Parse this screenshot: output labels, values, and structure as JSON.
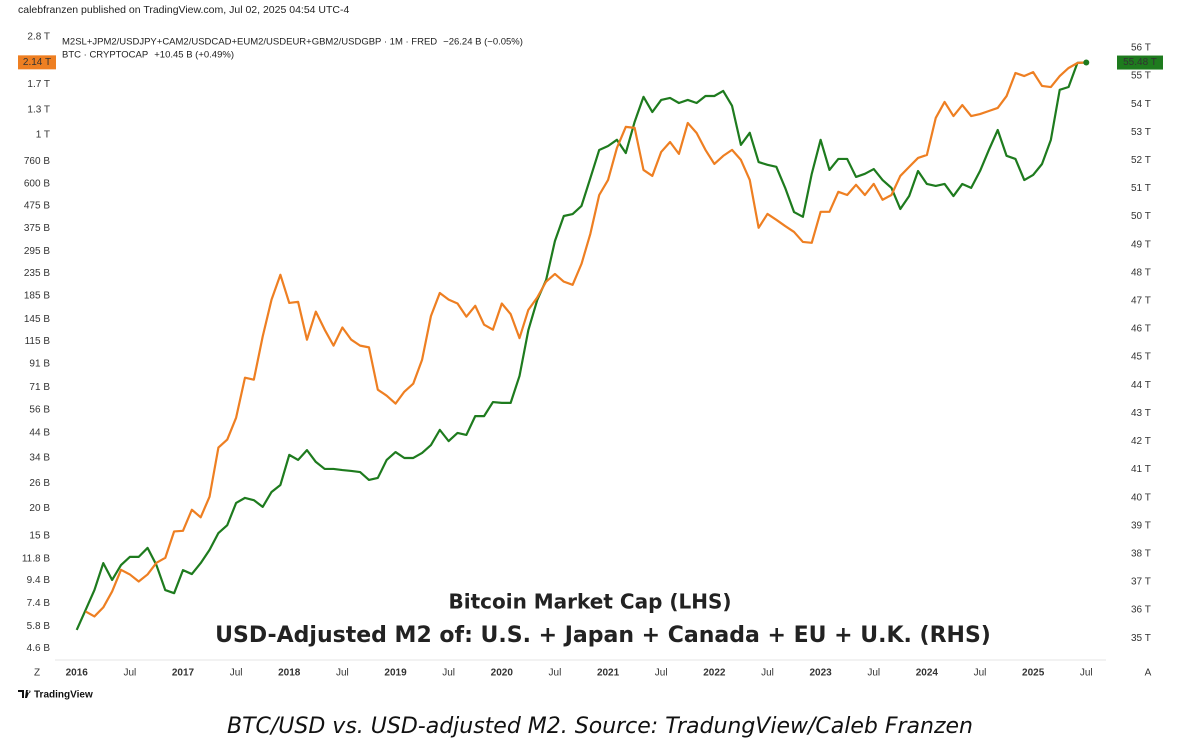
{
  "header": "calebfranzen published on TradingView.com, Jul 02, 2025 04:54 UTC-4",
  "chart_data": {
    "type": "line",
    "x": [
      "2016-01",
      "2016-02",
      "2016-03",
      "2016-04",
      "2016-05",
      "2016-06",
      "2016-07",
      "2016-08",
      "2016-09",
      "2016-10",
      "2016-11",
      "2016-12",
      "2017-01",
      "2017-02",
      "2017-03",
      "2017-04",
      "2017-05",
      "2017-06",
      "2017-07",
      "2017-08",
      "2017-09",
      "2017-10",
      "2017-11",
      "2017-12",
      "2018-01",
      "2018-02",
      "2018-03",
      "2018-04",
      "2018-05",
      "2018-06",
      "2018-07",
      "2018-08",
      "2018-09",
      "2018-10",
      "2018-11",
      "2018-12",
      "2019-01",
      "2019-02",
      "2019-03",
      "2019-04",
      "2019-05",
      "2019-06",
      "2019-07",
      "2019-08",
      "2019-09",
      "2019-10",
      "2019-11",
      "2019-12",
      "2020-01",
      "2020-02",
      "2020-03",
      "2020-04",
      "2020-05",
      "2020-06",
      "2020-07",
      "2020-08",
      "2020-09",
      "2020-10",
      "2020-11",
      "2020-12",
      "2021-01",
      "2021-02",
      "2021-03",
      "2021-04",
      "2021-05",
      "2021-06",
      "2021-07",
      "2021-08",
      "2021-09",
      "2021-10",
      "2021-11",
      "2021-12",
      "2022-01",
      "2022-02",
      "2022-03",
      "2022-04",
      "2022-05",
      "2022-06",
      "2022-07",
      "2022-08",
      "2022-09",
      "2022-10",
      "2022-11",
      "2022-12",
      "2023-01",
      "2023-02",
      "2023-03",
      "2023-04",
      "2023-05",
      "2023-06",
      "2023-07",
      "2023-08",
      "2023-09",
      "2023-10",
      "2023-11",
      "2023-12",
      "2024-01",
      "2024-02",
      "2024-03",
      "2024-04",
      "2024-05",
      "2024-06",
      "2024-07",
      "2024-08",
      "2024-09",
      "2024-10",
      "2024-11",
      "2024-12",
      "2025-01",
      "2025-02",
      "2025-03",
      "2025-04",
      "2025-05",
      "2025-06",
      "2025-07"
    ],
    "series": [
      {
        "name": "M2SL+JPM2/USDJPY+CAM2/USDCAD+EUM2/USDEUR+GBM2/USDGBP · 1M · FRED",
        "change": "−26.24 B (−0.05%)",
        "color": "#1e7b1e",
        "axis": "y2",
        "last_value_label": "55.48 T",
        "values": [
          35.29,
          36.0,
          36.71,
          37.67,
          37.07,
          37.6,
          37.89,
          37.89,
          38.21,
          37.6,
          36.71,
          36.6,
          37.42,
          37.28,
          37.67,
          38.14,
          38.74,
          39.02,
          39.81,
          39.99,
          39.91,
          39.67,
          40.2,
          40.45,
          41.52,
          41.34,
          41.69,
          41.27,
          41.02,
          41.02,
          40.98,
          40.95,
          40.91,
          40.63,
          40.7,
          41.34,
          41.62,
          41.41,
          41.41,
          41.59,
          41.87,
          42.41,
          42.01,
          42.3,
          42.23,
          42.9,
          42.9,
          43.4,
          43.37,
          43.37,
          44.33,
          45.96,
          47.03,
          47.74,
          49.13,
          50.02,
          50.09,
          50.38,
          51.37,
          52.37,
          52.51,
          52.73,
          52.26,
          53.37,
          54.26,
          53.72,
          54.15,
          54.22,
          54.04,
          54.15,
          54.04,
          54.29,
          54.29,
          54.47,
          53.94,
          52.55,
          52.98,
          51.94,
          51.84,
          51.77,
          51.02,
          50.16,
          49.99,
          51.52,
          52.73,
          51.66,
          52.05,
          52.05,
          51.41,
          51.52,
          51.69,
          51.3,
          51.02,
          50.27,
          50.73,
          51.62,
          51.16,
          51.09,
          51.16,
          50.73,
          51.16,
          51.02,
          51.62,
          52.37,
          53.08,
          52.16,
          52.05,
          51.3,
          51.48,
          51.87,
          52.73,
          54.51,
          54.61,
          55.47,
          55.48
        ]
      },
      {
        "name": "BTC · CRYPTOCAP",
        "change": "+10.45 B (+0.49%)",
        "color": "#ee7f22",
        "last_value_label": "2.14 T",
        "values": [
          null,
          6.79,
          6.44,
          7.08,
          8.37,
          10.5,
          10.0,
          9.29,
          10.0,
          11.3,
          11.9,
          15.7,
          15.8,
          19.7,
          18.2,
          22.6,
          37.8,
          41.1,
          51.7,
          78.6,
          77.0,
          121,
          178,
          231,
          172,
          174,
          117,
          157,
          130,
          110,
          133,
          117,
          110,
          108,
          69.3,
          65.1,
          59.9,
          67.9,
          73.8,
          94.9,
          150,
          191,
          178,
          171,
          149,
          167,
          137,
          130,
          171,
          153,
          119,
          160,
          182,
          215,
          233,
          215,
          208,
          259,
          355,
          533,
          624,
          873,
          1088,
          1077,
          693,
          651,
          837,
          929,
          820,
          1134,
          1021,
          855,
          738,
          803,
          855,
          770,
          624,
          378,
          437,
          411,
          385,
          362,
          326,
          323,
          447,
          447,
          551,
          533,
          593,
          533,
          599,
          507,
          533,
          651,
          716,
          786,
          811,
          1195,
          1413,
          1219,
          1368,
          1219,
          1245,
          1285,
          1327,
          1503,
          1914,
          1854,
          1932,
          1671,
          1652,
          1854,
          2017,
          2125,
          2140
        ]
      }
    ],
    "yscale": "log",
    "ylim": [
      4.3,
      2850
    ],
    "yticks": [
      {
        "value": 4.6,
        "label": "4.6 B"
      },
      {
        "value": 5.8,
        "label": "5.8 B"
      },
      {
        "value": 7.4,
        "label": "7.4 B"
      },
      {
        "value": 9.4,
        "label": "9.4 B"
      },
      {
        "value": 11.8,
        "label": "11.8 B"
      },
      {
        "value": 15,
        "label": "15 B"
      },
      {
        "value": 20,
        "label": "20 B"
      },
      {
        "value": 26,
        "label": "26 B"
      },
      {
        "value": 34,
        "label": "34 B"
      },
      {
        "value": 44,
        "label": "44 B"
      },
      {
        "value": 56,
        "label": "56 B"
      },
      {
        "value": 71,
        "label": "71 B"
      },
      {
        "value": 91,
        "label": "91 B"
      },
      {
        "value": 115,
        "label": "115 B"
      },
      {
        "value": 145,
        "label": "145 B"
      },
      {
        "value": 185,
        "label": "185 B"
      },
      {
        "value": 235,
        "label": "235 B"
      },
      {
        "value": 295,
        "label": "295 B"
      },
      {
        "value": 375,
        "label": "375 B"
      },
      {
        "value": 475,
        "label": "475 B"
      },
      {
        "value": 600,
        "label": "600 B"
      },
      {
        "value": 760,
        "label": "760 B"
      },
      {
        "value": 1000,
        "label": "1 T"
      },
      {
        "value": 1300,
        "label": "1.3 T"
      },
      {
        "value": 1700,
        "label": "1.7 T"
      },
      {
        "value": 2800,
        "label": "2.8 T"
      }
    ],
    "y2lim": [
      34.4,
      56.46
    ],
    "y2ticks": [
      {
        "value": 35,
        "label": "35 T"
      },
      {
        "value": 36,
        "label": "36 T"
      },
      {
        "value": 37,
        "label": "37 T"
      },
      {
        "value": 38,
        "label": "38 T"
      },
      {
        "value": 39,
        "label": "39 T"
      },
      {
        "value": 40,
        "label": "40 T"
      },
      {
        "value": 41,
        "label": "41 T"
      },
      {
        "value": 42,
        "label": "42 T"
      },
      {
        "value": 43,
        "label": "43 T"
      },
      {
        "value": 44,
        "label": "44 T"
      },
      {
        "value": 45,
        "label": "45 T"
      },
      {
        "value": 46,
        "label": "46 T"
      },
      {
        "value": 47,
        "label": "47 T"
      },
      {
        "value": 48,
        "label": "48 T"
      },
      {
        "value": 49,
        "label": "49 T"
      },
      {
        "value": 50,
        "label": "50 T"
      },
      {
        "value": 51,
        "label": "51 T"
      },
      {
        "value": 52,
        "label": "52 T"
      },
      {
        "value": 53,
        "label": "53 T"
      },
      {
        "value": 54,
        "label": "54 T"
      },
      {
        "value": 55,
        "label": "55 T"
      },
      {
        "value": 56,
        "label": "56 T"
      }
    ],
    "xlim": [
      "2015-11",
      "2025-09"
    ],
    "xticks": [
      {
        "value": "2016-01",
        "label": "2016"
      },
      {
        "value": "2016-07",
        "label": "Jul"
      },
      {
        "value": "2017-01",
        "label": "2017"
      },
      {
        "value": "2017-07",
        "label": "Jul"
      },
      {
        "value": "2018-01",
        "label": "2018"
      },
      {
        "value": "2018-07",
        "label": "Jul"
      },
      {
        "value": "2019-01",
        "label": "2019"
      },
      {
        "value": "2019-07",
        "label": "Jul"
      },
      {
        "value": "2020-01",
        "label": "2020"
      },
      {
        "value": "2020-07",
        "label": "Jul"
      },
      {
        "value": "2021-01",
        "label": "2021"
      },
      {
        "value": "2021-07",
        "label": "Jul"
      },
      {
        "value": "2022-01",
        "label": "2022"
      },
      {
        "value": "2022-07",
        "label": "Jul"
      },
      {
        "value": "2023-01",
        "label": "2023"
      },
      {
        "value": "2023-07",
        "label": "Jul"
      },
      {
        "value": "2024-01",
        "label": "2024"
      },
      {
        "value": "2024-07",
        "label": "Jul"
      },
      {
        "value": "2025-01",
        "label": "2025"
      },
      {
        "value": "2025-07",
        "label": "Jul"
      }
    ],
    "annotations": [
      {
        "text": "Bitcoin Market Cap (LHS)",
        "color": "#e07b24"
      },
      {
        "text": "USD-Adjusted M2 of: U.S. + Japan + Canada + EU + U.K. (RHS)",
        "color": "#1b7a1b"
      }
    ],
    "axis_buttons": [
      "Z",
      "A"
    ]
  },
  "footer_logo": "TradingView",
  "caption": "BTC/USD vs. USD-adjusted M2. Source: TradungView/Caleb Franzen"
}
